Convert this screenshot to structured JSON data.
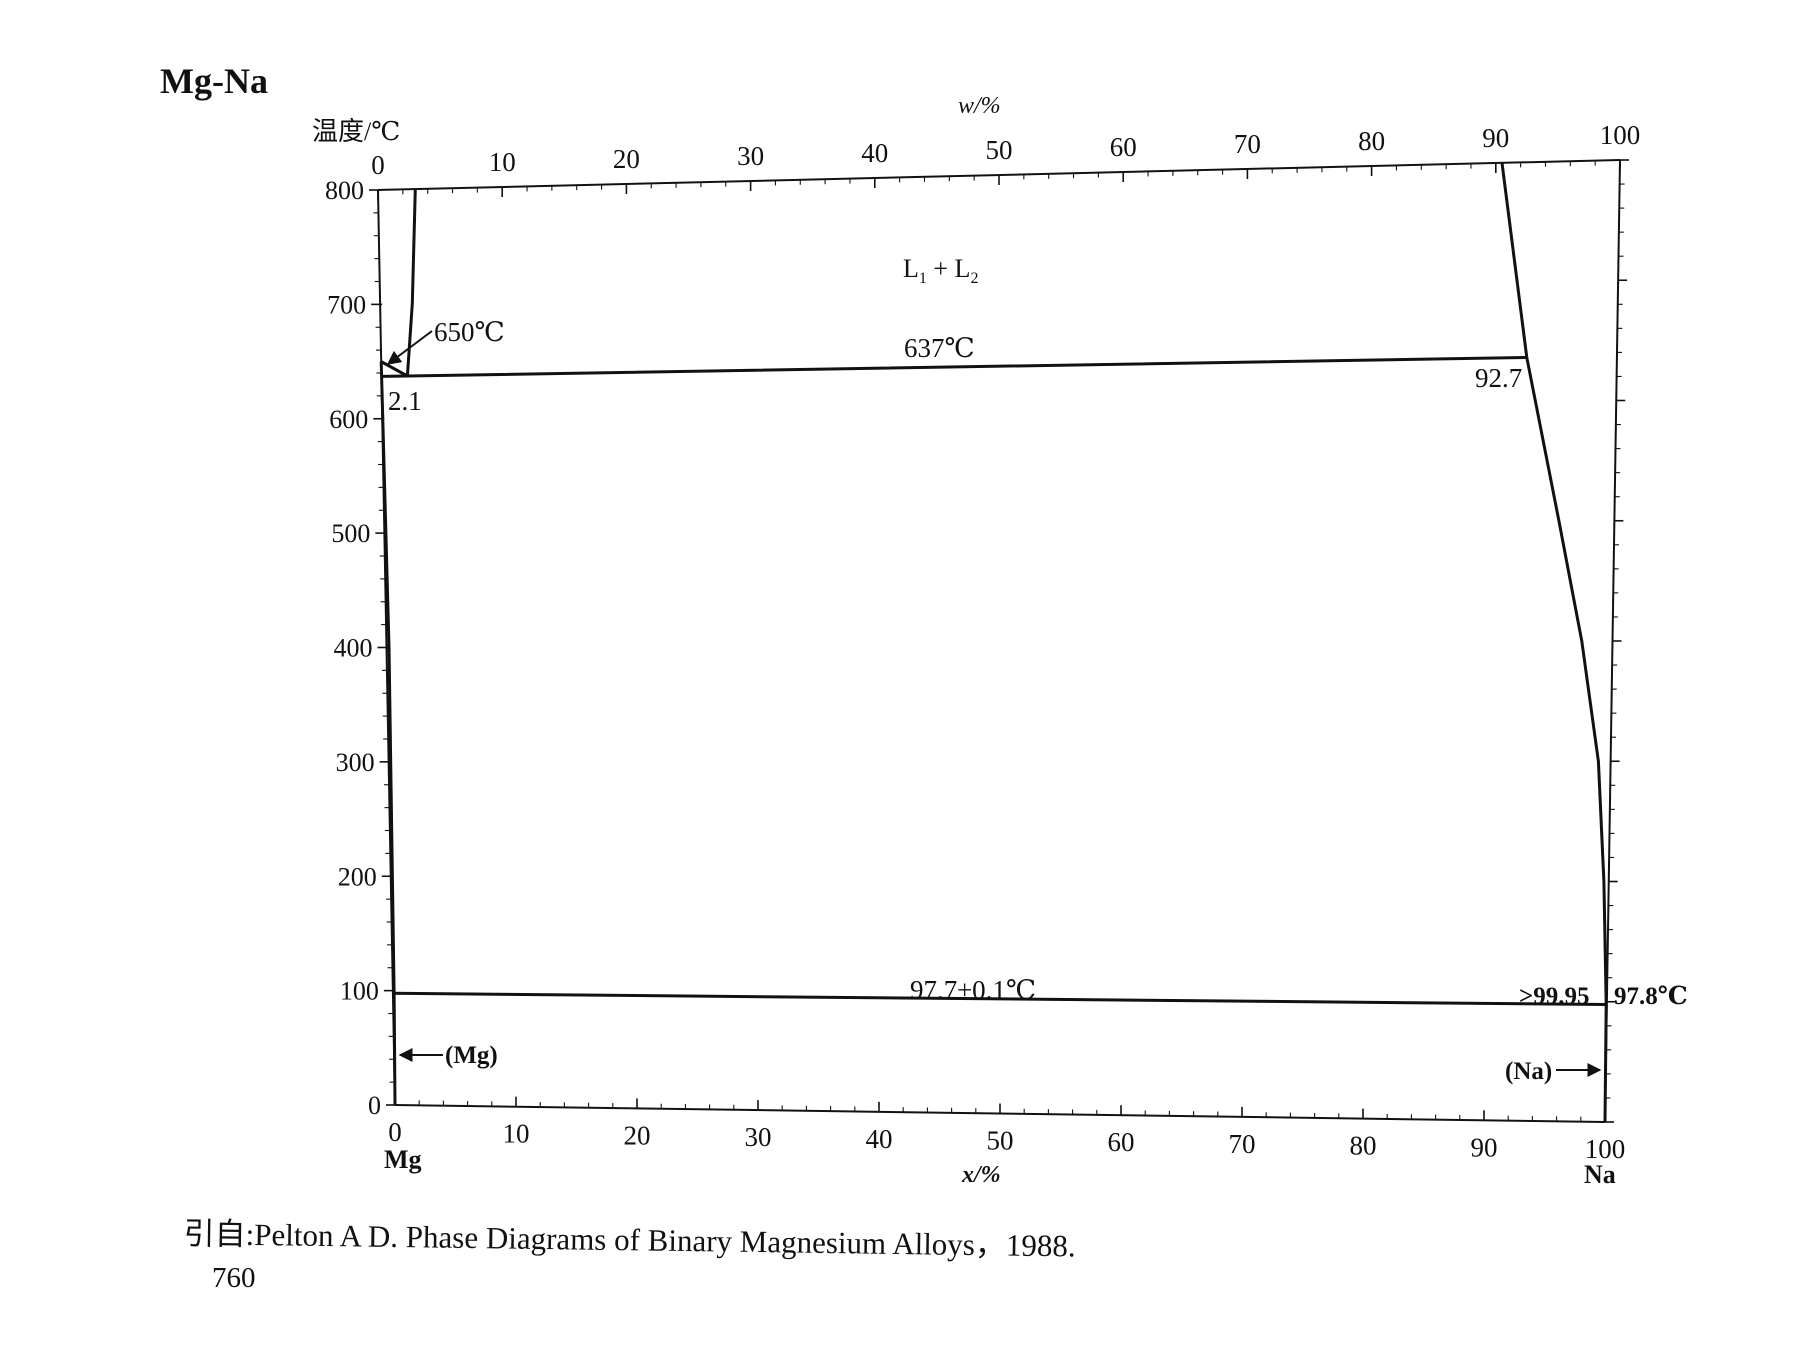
{
  "title": "Mg-Na",
  "y_axis_label": "温度/℃",
  "top_axis_label": "w/%",
  "bottom_axis_label": "x/%",
  "left_element": "Mg",
  "right_element": "Na",
  "y_ticks": [
    "800",
    "700",
    "600",
    "500",
    "400",
    "300",
    "200",
    "100",
    "0"
  ],
  "x_ticks": [
    "0",
    "10",
    "20",
    "30",
    "40",
    "50",
    "60",
    "70",
    "80",
    "90",
    "100"
  ],
  "annotations": {
    "two_liquids": "L",
    "two_liquids_sub1": "1",
    "two_liquids_plus": " + L",
    "two_liquids_sub2": "2",
    "mg_melting": "650℃",
    "monotectic_temp": "637℃",
    "monotectic_left": "2.1",
    "monotectic_right": "92.7",
    "eutectic_temp": "97.7±0.1℃",
    "eutectic_right": ">99.95",
    "na_melting": "97.8℃",
    "mg_phase": "(Mg)",
    "na_phase": "(Na)"
  },
  "citation": "引自:Pelton A D. Phase Diagrams of Binary Magnesium Alloys，1988.",
  "page_number": "760",
  "chart_data": {
    "type": "line",
    "title": "Mg-Na",
    "xlabel": "x/%",
    "x2label": "w/%",
    "ylabel": "温度/℃",
    "xlim": [
      0,
      100
    ],
    "ylim": [
      0,
      800
    ],
    "series": [
      {
        "values": [
          [
            0,
            650
          ],
          [
            2.1,
            637
          ]
        ]
      },
      {
        "values": [
          [
            2.1,
            637
          ],
          [
            2.6,
            700
          ],
          [
            3.0,
            800
          ]
        ]
      },
      {
        "values": [
          [
            0,
            637
          ],
          [
            2.1,
            637
          ],
          [
            92.7,
            637
          ]
        ]
      },
      {
        "values": [
          [
            90.5,
            800
          ],
          [
            92.7,
            637
          ]
        ]
      },
      {
        "values": [
          [
            92.7,
            637
          ],
          [
            95.5,
            500
          ],
          [
            97.5,
            400
          ],
          [
            99.0,
            300
          ],
          [
            99.6,
            200
          ],
          [
            99.95,
            97.7
          ],
          [
            100,
            0
          ]
        ]
      },
      {
        "values": [
          [
            0,
            650
          ],
          [
            0.2,
            400
          ],
          [
            0.1,
            97.7
          ],
          [
            0,
            0
          ]
        ]
      },
      {
        "values": [
          [
            0,
            97.7
          ],
          [
            99.95,
            97.7
          ],
          [
            100,
            97.8
          ]
        ]
      }
    ]
  }
}
